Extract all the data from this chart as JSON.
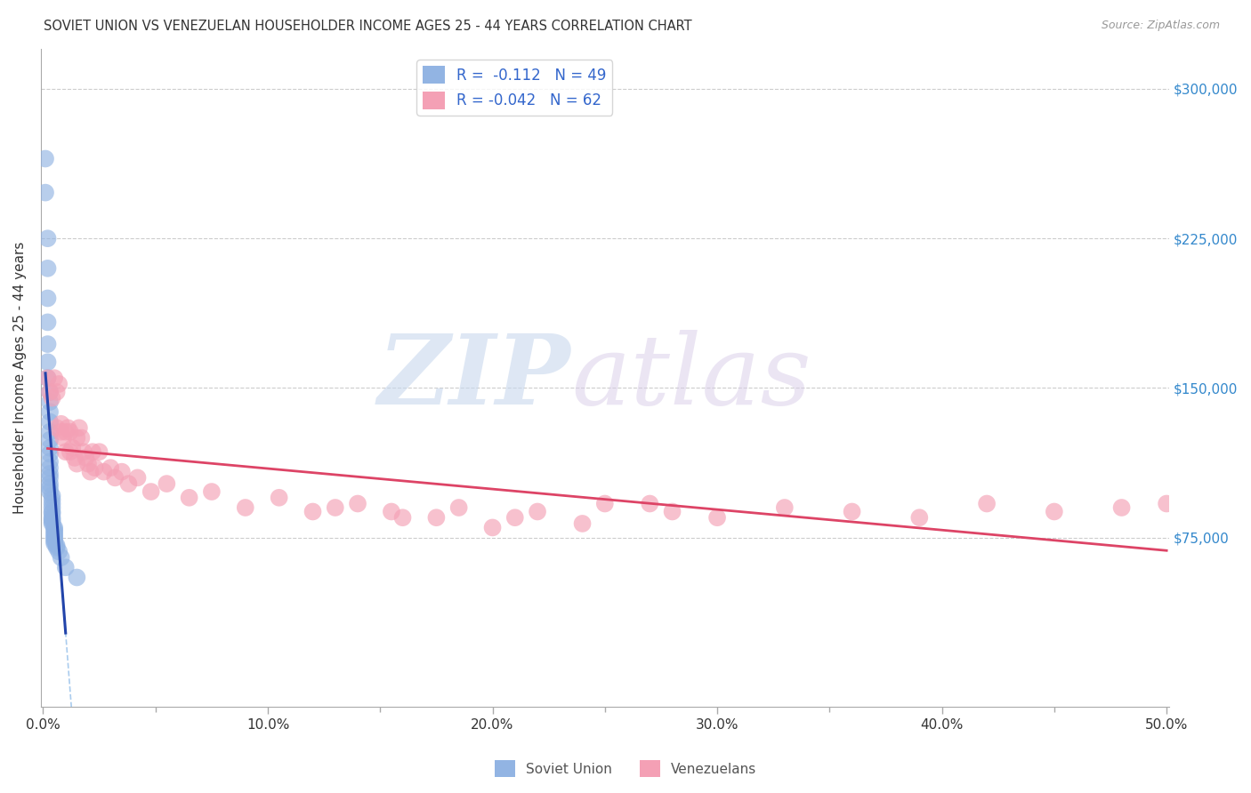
{
  "title": "SOVIET UNION VS VENEZUELAN HOUSEHOLDER INCOME AGES 25 - 44 YEARS CORRELATION CHART",
  "source": "Source: ZipAtlas.com",
  "ylabel": "Householder Income Ages 25 - 44 years",
  "ytick_labels": [
    "$75,000",
    "$150,000",
    "$225,000",
    "$300,000"
  ],
  "ytick_vals": [
    75000,
    150000,
    225000,
    300000
  ],
  "ylim": [
    -10000,
    320000
  ],
  "xlim": [
    -0.001,
    0.501
  ],
  "xtick_vals": [
    0.0,
    0.1,
    0.2,
    0.3,
    0.4,
    0.5
  ],
  "xtick_labels": [
    "0.0%",
    "10.0%",
    "20.0%",
    "30.0%",
    "40.0%",
    "50.0%"
  ],
  "xminor_ticks": [
    0.05,
    0.15,
    0.25,
    0.35,
    0.45
  ],
  "legend_soviet_r": "-0.112",
  "legend_soviet_n": "49",
  "legend_venezuelan_r": "-0.042",
  "legend_venezuelan_n": "62",
  "soviet_color": "#92b4e3",
  "venezuelan_color": "#f4a0b5",
  "soviet_line_color": "#2244aa",
  "venezuelan_line_color": "#dd4466",
  "soviet_dashed_color": "#aaccee",
  "background_color": "#ffffff",
  "grid_color": "#cccccc",
  "soviet_x": [
    0.001,
    0.001,
    0.002,
    0.002,
    0.002,
    0.002,
    0.002,
    0.002,
    0.002,
    0.003,
    0.003,
    0.003,
    0.003,
    0.003,
    0.003,
    0.003,
    0.003,
    0.003,
    0.003,
    0.003,
    0.003,
    0.003,
    0.003,
    0.003,
    0.004,
    0.004,
    0.004,
    0.004,
    0.004,
    0.004,
    0.004,
    0.004,
    0.004,
    0.004,
    0.005,
    0.005,
    0.005,
    0.005,
    0.005,
    0.005,
    0.005,
    0.005,
    0.005,
    0.006,
    0.006,
    0.007,
    0.008,
    0.01,
    0.015
  ],
  "soviet_y": [
    265000,
    248000,
    225000,
    210000,
    195000,
    183000,
    172000,
    163000,
    155000,
    148000,
    143000,
    138000,
    133000,
    128000,
    124000,
    120000,
    117000,
    113000,
    110000,
    107000,
    105000,
    102000,
    100000,
    98000,
    96000,
    94000,
    92000,
    90000,
    88000,
    87000,
    85000,
    84000,
    83000,
    82000,
    80000,
    79000,
    78000,
    77000,
    76000,
    75000,
    74000,
    73000,
    72000,
    71000,
    70000,
    68000,
    65000,
    60000,
    55000
  ],
  "venezuelan_x": [
    0.002,
    0.003,
    0.004,
    0.005,
    0.006,
    0.006,
    0.007,
    0.008,
    0.008,
    0.009,
    0.01,
    0.01,
    0.011,
    0.012,
    0.012,
    0.013,
    0.014,
    0.015,
    0.015,
    0.016,
    0.017,
    0.018,
    0.019,
    0.02,
    0.021,
    0.022,
    0.023,
    0.025,
    0.027,
    0.03,
    0.032,
    0.035,
    0.038,
    0.042,
    0.048,
    0.055,
    0.065,
    0.075,
    0.09,
    0.105,
    0.12,
    0.14,
    0.16,
    0.185,
    0.21,
    0.24,
    0.27,
    0.3,
    0.33,
    0.36,
    0.39,
    0.42,
    0.45,
    0.48,
    0.5,
    0.22,
    0.25,
    0.28,
    0.13,
    0.155,
    0.175,
    0.2
  ],
  "venezuelan_y": [
    155000,
    148000,
    145000,
    155000,
    130000,
    148000,
    152000,
    132000,
    128000,
    125000,
    128000,
    118000,
    130000,
    128000,
    118000,
    120000,
    115000,
    125000,
    112000,
    130000,
    125000,
    118000,
    115000,
    112000,
    108000,
    118000,
    110000,
    118000,
    108000,
    110000,
    105000,
    108000,
    102000,
    105000,
    98000,
    102000,
    95000,
    98000,
    90000,
    95000,
    88000,
    92000,
    85000,
    90000,
    85000,
    82000,
    92000,
    85000,
    90000,
    88000,
    85000,
    92000,
    88000,
    90000,
    92000,
    88000,
    92000,
    88000,
    90000,
    88000,
    85000,
    80000
  ]
}
